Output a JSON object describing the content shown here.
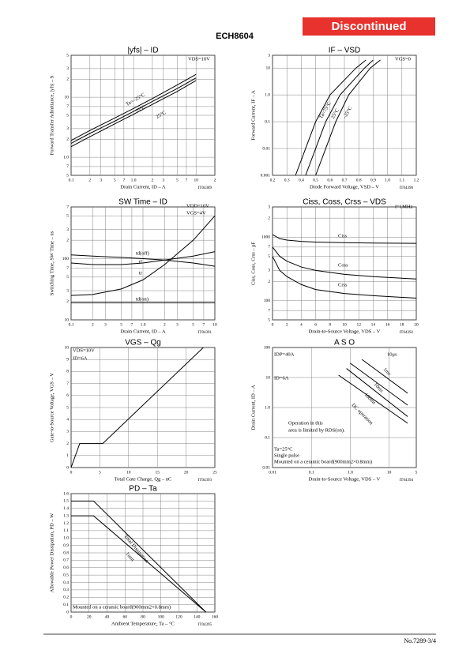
{
  "header": {
    "part": "ECH8604",
    "status": "Discontinued"
  },
  "footer": {
    "page": "No.7289-3/4"
  },
  "chart_data": [
    {
      "type": "line",
      "title": "|yfs| – ID",
      "xlabel": "Drain Current, ID – A",
      "ylabel": "Forward Transfer Admittance, |yfs| – S",
      "code": "IT04389",
      "annotations": [
        "VDS=10V"
      ],
      "xlog": true,
      "ylog": true,
      "xlim": [
        0.1,
        20
      ],
      "ylim": [
        0.5,
        50
      ],
      "xticks": [
        0.1,
        {
          "value": 0.2,
          "label": "2"
        },
        {
          "value": 0.3,
          "label": "3"
        },
        {
          "value": 0.5,
          "label": "5"
        },
        {
          "value": 0.7,
          "label": "7"
        },
        {
          "value": 1,
          "label": "1.0"
        },
        2,
        3,
        5,
        7,
        10,
        {
          "value": 20,
          "label": "2"
        }
      ],
      "yticks": [
        {
          "value": 0.5,
          "label": "5"
        },
        {
          "value": 0.7,
          "label": "7"
        },
        {
          "value": 1,
          "label": "1.0"
        },
        2,
        3,
        5,
        7,
        10,
        {
          "value": 20,
          "label": "2"
        },
        {
          "value": 30,
          "label": "3"
        },
        {
          "value": 50,
          "label": "5"
        }
      ],
      "series": [
        {
          "name": "Ta=–25°C",
          "color": "#000",
          "x": [
            0.1,
            0.2,
            0.5,
            1,
            2,
            5,
            10
          ],
          "values": [
            1.9,
            2.8,
            4.5,
            6.5,
            9.5,
            16,
            24
          ]
        },
        {
          "name": "75°C",
          "color": "#000",
          "x": [
            0.1,
            0.2,
            0.5,
            1,
            2,
            5,
            10
          ],
          "values": [
            1.7,
            2.5,
            4,
            5.8,
            8.5,
            14,
            21
          ]
        },
        {
          "name": "25°C",
          "color": "#000",
          "x": [
            0.1,
            0.2,
            0.5,
            1,
            2,
            5,
            10
          ],
          "values": [
            1.5,
            2.2,
            3.6,
            5.2,
            7.6,
            12.5,
            19
          ]
        }
      ]
    },
    {
      "type": "line",
      "title": "IF – VSD",
      "xlabel": "Diode Forward Voltage, VSD – V",
      "ylabel": "Forward Current, IF – A",
      "code": "IT04390",
      "annotations": [
        "VGS=0"
      ],
      "xlog": false,
      "ylog": true,
      "xlim": [
        0.2,
        1.2
      ],
      "ylim": [
        0.001,
        30
      ],
      "xticks": [
        0.2,
        0.3,
        0.4,
        0.5,
        0.6,
        0.7,
        0.8,
        0.9,
        {
          "value": 1,
          "label": "1.0"
        },
        1.1,
        1.2
      ],
      "yticks": [
        0.001,
        0.01,
        0.1,
        {
          "value": 1,
          "label": "1.0"
        },
        10,
        {
          "value": 30,
          "label": "3"
        }
      ],
      "series": [
        {
          "name": "Ta=75°C",
          "color": "#000",
          "x": [
            0.36,
            0.43,
            0.5,
            0.6,
            0.78,
            0.85
          ],
          "values": [
            0.001,
            0.01,
            0.1,
            1,
            10,
            20
          ]
        },
        {
          "name": "25°C",
          "color": "#000",
          "x": [
            0.43,
            0.5,
            0.57,
            0.67,
            0.84,
            0.9
          ],
          "values": [
            0.001,
            0.01,
            0.1,
            1,
            10,
            20
          ]
        },
        {
          "name": "–25°C",
          "color": "#000",
          "x": [
            0.5,
            0.57,
            0.64,
            0.73,
            0.88,
            0.95
          ],
          "values": [
            0.001,
            0.01,
            0.1,
            1,
            10,
            20
          ]
        }
      ]
    },
    {
      "type": "line",
      "title": "SW Time – ID",
      "xlabel": "Drain Current, ID – A",
      "ylabel": "Switching Time, SW Time – ns",
      "code": "IT04391",
      "annotations": [
        "VDD=10V",
        "VGS=4V"
      ],
      "xlog": true,
      "ylog": true,
      "xlim": [
        0.1,
        10
      ],
      "ylim": [
        10,
        700
      ],
      "xticks": [
        0.1,
        {
          "value": 0.2,
          "label": "2"
        },
        {
          "value": 0.3,
          "label": "3"
        },
        {
          "value": 0.5,
          "label": "5"
        },
        {
          "value": 0.7,
          "label": "7"
        },
        {
          "value": 1,
          "label": "1.0"
        },
        2,
        3,
        5,
        7,
        10
      ],
      "yticks": [
        10,
        {
          "value": 20,
          "label": "2"
        },
        {
          "value": 30,
          "label": "3"
        },
        {
          "value": 50,
          "label": "5"
        },
        {
          "value": 70,
          "label": "7"
        },
        100,
        {
          "value": 200,
          "label": "2"
        },
        {
          "value": 300,
          "label": "3"
        },
        {
          "value": 500,
          "label": "5"
        },
        {
          "value": 700,
          "label": "7"
        }
      ],
      "series": [
        {
          "name": "td(off)",
          "color": "#000",
          "x": [
            0.1,
            0.2,
            0.5,
            1,
            2,
            5,
            10
          ],
          "values": [
            115,
            110,
            105,
            100,
            95,
            85,
            75
          ]
        },
        {
          "name": "tf",
          "color": "#000",
          "x": [
            0.1,
            0.2,
            0.5,
            1,
            2,
            5,
            10
          ],
          "values": [
            85,
            80,
            80,
            85,
            95,
            110,
            130
          ]
        },
        {
          "name": "tr",
          "color": "#000",
          "x": [
            0.1,
            0.2,
            0.5,
            1,
            2,
            5,
            10
          ],
          "values": [
            25,
            26,
            32,
            45,
            80,
            200,
            500
          ]
        },
        {
          "name": "td(on)",
          "color": "#000",
          "x": [
            0.1,
            10
          ],
          "values": [
            19,
            19
          ]
        }
      ]
    },
    {
      "type": "line",
      "title": "Ciss, Coss, Crss – VDS",
      "xlabel": "Drain-to-Source Voltage, VDS – V",
      "ylabel": "Ciss, Coss, Crss – pF",
      "code": "IT04392",
      "annotations": [
        "f=1MHz"
      ],
      "xlog": false,
      "ylog": true,
      "xlim": [
        0,
        20
      ],
      "ylim": [
        50,
        3000
      ],
      "xticks": [
        0,
        2,
        4,
        6,
        8,
        10,
        12,
        14,
        16,
        18,
        20
      ],
      "yticks": [
        {
          "value": 50,
          "label": "5"
        },
        {
          "value": 70,
          "label": "7"
        },
        100,
        {
          "value": 200,
          "label": "2"
        },
        {
          "value": 300,
          "label": "3"
        },
        {
          "value": 500,
          "label": "5"
        },
        {
          "value": 700,
          "label": "7"
        },
        1000,
        {
          "value": 2000,
          "label": "2"
        },
        {
          "value": 3000,
          "label": "3"
        }
      ],
      "series": [
        {
          "name": "Ciss",
          "color": "#000",
          "x": [
            0,
            1,
            2,
            4,
            6,
            10,
            14,
            20
          ],
          "values": [
            1100,
            950,
            900,
            860,
            840,
            820,
            810,
            800
          ]
        },
        {
          "name": "Coss",
          "color": "#000",
          "x": [
            0,
            1,
            2,
            4,
            6,
            10,
            14,
            20
          ],
          "values": [
            700,
            500,
            420,
            340,
            300,
            260,
            240,
            220
          ]
        },
        {
          "name": "Crss",
          "color": "#000",
          "x": [
            0,
            1,
            2,
            4,
            6,
            10,
            14,
            20
          ],
          "values": [
            500,
            300,
            240,
            180,
            150,
            130,
            120,
            110
          ]
        }
      ]
    },
    {
      "type": "line",
      "title": "VGS – Qg",
      "xlabel": "Total Gate Charge, Qg – nC",
      "ylabel": "Gate-to-Source Voltage, VGS – V",
      "code": "IT04393",
      "annotations": [
        "VDS=10V",
        "ID=6A"
      ],
      "xlog": false,
      "ylog": false,
      "xlim": [
        0,
        25
      ],
      "ylim": [
        0,
        10
      ],
      "xticks": [
        0,
        5,
        10,
        15,
        20,
        25
      ],
      "yticks": [
        0,
        1,
        2,
        3,
        4,
        5,
        6,
        7,
        8,
        9,
        10
      ],
      "series": [
        {
          "color": "#000",
          "x": [
            0,
            1.5,
            5.5,
            23
          ],
          "values": [
            0,
            2,
            2,
            10
          ]
        }
      ]
    },
    {
      "type": "line",
      "title": "A S O",
      "xlabel": "Drain-to-Source Voltage, VDS – V",
      "ylabel": "Drain Current, ID – A",
      "code": "IT04394",
      "annotations": [
        "IDP=40A",
        "ID=6A",
        "10μs",
        "Operation in this",
        "area is limited by RDS(on).",
        "Ta=25°C",
        "Single pulse",
        "Mounted on a ceramic board(900mm2×0.8mm)"
      ],
      "xlog": true,
      "ylog": true,
      "xlim": [
        0.01,
        50
      ],
      "ylim": [
        0.01,
        100
      ],
      "xticks": [
        0.01,
        0.1,
        {
          "value": 1,
          "label": "1.0"
        },
        10,
        {
          "value": 50,
          "label": "5"
        }
      ],
      "yticks": [
        0.01,
        0.1,
        {
          "value": 1,
          "label": "1.0"
        },
        10,
        100
      ],
      "series": [
        {
          "name": "1ms",
          "color": "#000",
          "x": [
            2,
            30
          ],
          "values": [
            40,
            3
          ]
        },
        {
          "name": "10ms",
          "color": "#000",
          "x": [
            1,
            30
          ],
          "values": [
            30,
            1.2
          ]
        },
        {
          "name": "100ms",
          "color": "#000",
          "x": [
            0.8,
            30
          ],
          "values": [
            20,
            0.5
          ]
        },
        {
          "name": "DC operation",
          "color": "#000",
          "x": [
            0.5,
            30
          ],
          "values": [
            12,
            0.3
          ]
        }
      ]
    },
    {
      "type": "line",
      "title": "PD – Ta",
      "xlabel": "Ambient Temperature, Ta – °C",
      "ylabel": "Allowable Power Dissipation, PD – W",
      "code": "IT04395",
      "annotations": [
        "Mounted on a ceramic board(900mm2×0.8mm)"
      ],
      "xlog": false,
      "ylog": false,
      "xlim": [
        0,
        160
      ],
      "ylim": [
        0,
        1.6
      ],
      "xticks": [
        0,
        20,
        40,
        60,
        80,
        100,
        120,
        140,
        160
      ],
      "yticks": [
        0,
        0.1,
        0.2,
        0.3,
        0.4,
        0.5,
        0.6,
        0.7,
        0.8,
        0.9,
        {
          "value": 1,
          "label": "1.0"
        },
        1.1,
        1.2,
        1.3,
        1.4,
        1.5,
        1.6
      ],
      "series": [
        {
          "name": "Total Dissipation",
          "color": "#000",
          "x": [
            0,
            25,
            150
          ],
          "values": [
            1.5,
            1.5,
            0
          ]
        },
        {
          "name": "1unit",
          "color": "#000",
          "x": [
            0,
            25,
            150
          ],
          "values": [
            1.3,
            1.3,
            0
          ]
        }
      ]
    }
  ]
}
